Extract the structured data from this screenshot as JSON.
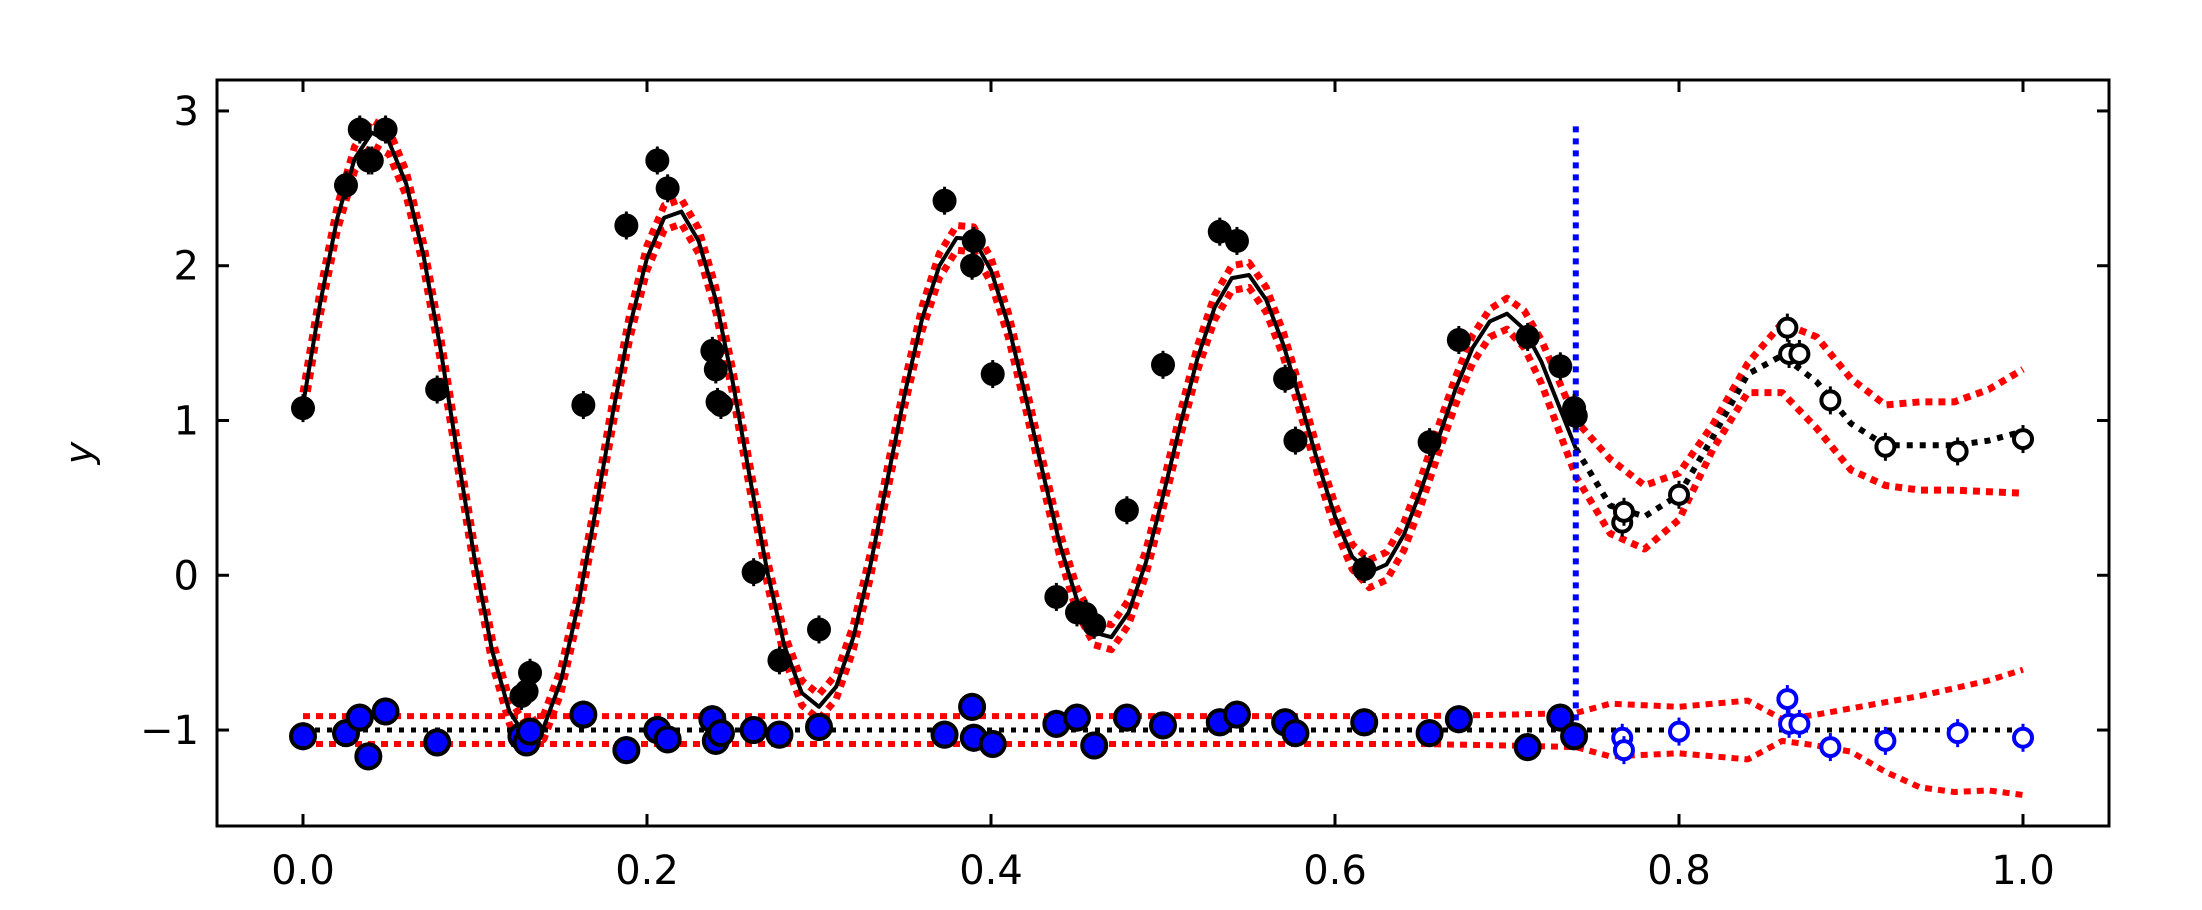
{
  "chart_data": {
    "type": "scatter",
    "title": "",
    "xlabel": "",
    "ylabel": "y",
    "xlim": [
      -0.05,
      1.05
    ],
    "ylim": [
      -1.62,
      3.2
    ],
    "xticks": [
      0.0,
      0.2,
      0.4,
      0.6,
      0.8,
      1.0
    ],
    "xtick_labels": [
      "0.0",
      "0.2",
      "0.4",
      "0.6",
      "0.8",
      "1.0"
    ],
    "yticks": [
      -1,
      0,
      1,
      2,
      3
    ],
    "ytick_labels": [
      "−1",
      "0",
      "1",
      "2",
      "3"
    ],
    "grid": false,
    "legend": "none",
    "colors": {
      "data": "#000000",
      "residual": "#0000ff",
      "band": "#ff0000",
      "cutoff": "#0000ff"
    },
    "cutoff_x": 0.74,
    "cutoff_y_range": [
      -1.0,
      2.9
    ],
    "fit_curve": {
      "x": [
        0.0,
        0.01,
        0.02,
        0.03,
        0.04,
        0.05,
        0.06,
        0.07,
        0.08,
        0.09,
        0.1,
        0.11,
        0.12,
        0.13,
        0.14,
        0.15,
        0.16,
        0.17,
        0.18,
        0.19,
        0.2,
        0.21,
        0.22,
        0.23,
        0.24,
        0.25,
        0.26,
        0.27,
        0.28,
        0.29,
        0.3,
        0.31,
        0.32,
        0.33,
        0.34,
        0.35,
        0.36,
        0.37,
        0.38,
        0.39,
        0.4,
        0.41,
        0.42,
        0.43,
        0.44,
        0.45,
        0.46,
        0.47,
        0.48,
        0.49,
        0.5,
        0.51,
        0.52,
        0.53,
        0.54,
        0.55,
        0.56,
        0.57,
        0.58,
        0.59,
        0.6,
        0.61,
        0.62,
        0.63,
        0.64,
        0.65,
        0.66,
        0.67,
        0.68,
        0.69,
        0.7,
        0.71,
        0.72,
        0.73,
        0.74
      ],
      "y": [
        1.1,
        1.76,
        2.31,
        2.69,
        2.86,
        2.8,
        2.53,
        2.07,
        1.46,
        0.77,
        0.09,
        -0.49,
        -0.88,
        -1.05,
        -0.98,
        -0.68,
        -0.19,
        0.41,
        1.04,
        1.61,
        2.05,
        2.31,
        2.35,
        2.16,
        1.78,
        1.24,
        0.62,
        0.02,
        -0.46,
        -0.76,
        -0.85,
        -0.72,
        -0.4,
        0.07,
        0.63,
        1.18,
        1.66,
        2.0,
        2.18,
        2.17,
        1.97,
        1.62,
        1.16,
        0.67,
        0.2,
        -0.16,
        -0.37,
        -0.4,
        -0.24,
        0.08,
        0.51,
        0.97,
        1.4,
        1.73,
        1.92,
        1.94,
        1.78,
        1.49,
        1.12,
        0.73,
        0.38,
        0.12,
        0.02,
        0.07,
        0.26,
        0.55,
        0.88,
        1.2,
        1.47,
        1.64,
        1.69,
        1.59,
        1.38,
        1.1,
        0.82
      ]
    },
    "band_upper": {
      "x": [
        0.0,
        0.01,
        0.02,
        0.03,
        0.04,
        0.05,
        0.06,
        0.07,
        0.08,
        0.09,
        0.1,
        0.11,
        0.12,
        0.13,
        0.14,
        0.15,
        0.16,
        0.17,
        0.18,
        0.19,
        0.2,
        0.21,
        0.22,
        0.23,
        0.24,
        0.25,
        0.26,
        0.27,
        0.28,
        0.29,
        0.3,
        0.31,
        0.32,
        0.33,
        0.34,
        0.35,
        0.36,
        0.37,
        0.38,
        0.39,
        0.4,
        0.41,
        0.42,
        0.43,
        0.44,
        0.45,
        0.46,
        0.47,
        0.48,
        0.49,
        0.5,
        0.51,
        0.52,
        0.53,
        0.54,
        0.55,
        0.56,
        0.57,
        0.58,
        0.59,
        0.6,
        0.61,
        0.62,
        0.63,
        0.64,
        0.65,
        0.66,
        0.67,
        0.68,
        0.69,
        0.7,
        0.71,
        0.72,
        0.73,
        0.74,
        0.76,
        0.78,
        0.8,
        0.82,
        0.84,
        0.86,
        0.88,
        0.9,
        0.92,
        0.94,
        0.96,
        0.98,
        1.0
      ],
      "y": [
        1.18,
        1.84,
        2.39,
        2.77,
        2.94,
        2.88,
        2.61,
        2.15,
        1.54,
        0.85,
        0.17,
        -0.41,
        -0.8,
        -0.97,
        -0.9,
        -0.6,
        -0.11,
        0.49,
        1.12,
        1.69,
        2.13,
        2.39,
        2.43,
        2.24,
        1.86,
        1.32,
        0.7,
        0.1,
        -0.38,
        -0.68,
        -0.77,
        -0.64,
        -0.32,
        0.15,
        0.71,
        1.26,
        1.74,
        2.08,
        2.26,
        2.25,
        2.05,
        1.7,
        1.24,
        0.75,
        0.28,
        -0.08,
        -0.29,
        -0.32,
        -0.16,
        0.16,
        0.59,
        1.05,
        1.48,
        1.81,
        2.0,
        2.02,
        1.86,
        1.57,
        1.2,
        0.81,
        0.46,
        0.2,
        0.1,
        0.15,
        0.34,
        0.63,
        0.96,
        1.28,
        1.55,
        1.72,
        1.79,
        1.71,
        1.52,
        1.26,
        1.0,
        0.75,
        0.58,
        0.66,
        0.98,
        1.37,
        1.63,
        1.54,
        1.27,
        1.1,
        1.12,
        1.12,
        1.2,
        1.33
      ]
    },
    "band_lower": {
      "x": [
        0.0,
        0.01,
        0.02,
        0.03,
        0.04,
        0.05,
        0.06,
        0.07,
        0.08,
        0.09,
        0.1,
        0.11,
        0.12,
        0.13,
        0.14,
        0.15,
        0.16,
        0.17,
        0.18,
        0.19,
        0.2,
        0.21,
        0.22,
        0.23,
        0.24,
        0.25,
        0.26,
        0.27,
        0.28,
        0.29,
        0.3,
        0.31,
        0.32,
        0.33,
        0.34,
        0.35,
        0.36,
        0.37,
        0.38,
        0.39,
        0.4,
        0.41,
        0.42,
        0.43,
        0.44,
        0.45,
        0.46,
        0.47,
        0.48,
        0.49,
        0.5,
        0.51,
        0.52,
        0.53,
        0.54,
        0.55,
        0.56,
        0.57,
        0.58,
        0.59,
        0.6,
        0.61,
        0.62,
        0.63,
        0.64,
        0.65,
        0.66,
        0.67,
        0.68,
        0.69,
        0.7,
        0.71,
        0.72,
        0.73,
        0.74,
        0.76,
        0.78,
        0.8,
        0.82,
        0.84,
        0.86,
        0.88,
        0.9,
        0.92,
        0.94,
        0.96,
        0.98,
        1.0
      ],
      "y": [
        1.02,
        1.68,
        2.23,
        2.61,
        2.78,
        2.72,
        2.45,
        1.99,
        1.38,
        0.69,
        0.01,
        -0.57,
        -0.96,
        -1.13,
        -1.06,
        -0.76,
        -0.27,
        0.33,
        0.96,
        1.53,
        1.97,
        2.23,
        2.27,
        2.08,
        1.7,
        1.16,
        0.54,
        -0.06,
        -0.54,
        -0.84,
        -0.93,
        -0.8,
        -0.48,
        -0.01,
        0.55,
        1.1,
        1.58,
        1.92,
        2.1,
        2.09,
        1.89,
        1.54,
        1.08,
        0.59,
        0.12,
        -0.24,
        -0.45,
        -0.48,
        -0.32,
        0.0,
        0.43,
        0.89,
        1.32,
        1.65,
        1.84,
        1.86,
        1.7,
        1.41,
        1.04,
        0.65,
        0.3,
        0.04,
        -0.08,
        -0.03,
        0.16,
        0.45,
        0.78,
        1.1,
        1.37,
        1.54,
        1.59,
        1.47,
        1.24,
        0.94,
        0.64,
        0.27,
        0.17,
        0.36,
        0.82,
        1.18,
        1.18,
        0.95,
        0.68,
        0.58,
        0.55,
        0.55,
        0.54,
        0.53
      ]
    },
    "prediction_curve": {
      "x": [
        0.74,
        0.76,
        0.78,
        0.8,
        0.82,
        0.84,
        0.86,
        0.88,
        0.9,
        0.92,
        0.94,
        0.96,
        0.98,
        1.0
      ],
      "y": [
        0.82,
        0.45,
        0.38,
        0.52,
        0.9,
        1.3,
        1.42,
        1.25,
        0.98,
        0.84,
        0.84,
        0.84,
        0.87,
        0.93
      ]
    },
    "train_points": {
      "x": [
        0.0,
        0.025,
        0.033,
        0.038,
        0.04,
        0.048,
        0.078,
        0.127,
        0.13,
        0.132,
        0.163,
        0.188,
        0.206,
        0.212,
        0.238,
        0.24,
        0.241,
        0.243,
        0.262,
        0.277,
        0.3,
        0.373,
        0.389,
        0.39,
        0.401,
        0.438,
        0.45,
        0.455,
        0.46,
        0.479,
        0.5,
        0.533,
        0.543,
        0.571,
        0.577,
        0.617,
        0.655,
        0.672,
        0.712,
        0.731,
        0.739,
        0.74
      ],
      "y": [
        1.08,
        2.52,
        2.88,
        2.68,
        2.68,
        2.88,
        1.2,
        -0.78,
        -0.75,
        -0.63,
        1.1,
        2.26,
        2.68,
        2.5,
        1.45,
        1.33,
        1.12,
        1.1,
        0.02,
        -0.55,
        -0.35,
        2.42,
        2.0,
        2.16,
        1.3,
        -0.14,
        -0.24,
        -0.25,
        -0.32,
        0.42,
        1.36,
        2.22,
        2.16,
        1.27,
        0.87,
        0.04,
        0.86,
        1.52,
        1.54,
        1.35,
        1.08,
        1.03
      ]
    },
    "test_points": {
      "x": [
        0.767,
        0.768,
        0.8,
        0.863,
        0.864,
        0.87,
        0.888,
        0.92,
        0.962,
        1.0
      ],
      "y": [
        0.34,
        0.41,
        0.52,
        1.6,
        1.43,
        1.43,
        1.13,
        0.83,
        0.8,
        0.88
      ]
    },
    "residual_band_upper": {
      "x": [
        0.0,
        0.05,
        0.1,
        0.15,
        0.2,
        0.25,
        0.3,
        0.35,
        0.4,
        0.45,
        0.5,
        0.55,
        0.6,
        0.65,
        0.7,
        0.74,
        0.76,
        0.8,
        0.84,
        0.86,
        0.88,
        0.9,
        0.92,
        0.94,
        0.96,
        0.98,
        1.0
      ],
      "y": [
        -0.91,
        -0.91,
        -0.91,
        -0.91,
        -0.91,
        -0.91,
        -0.91,
        -0.91,
        -0.91,
        -0.91,
        -0.91,
        -0.91,
        -0.91,
        -0.91,
        -0.9,
        -0.89,
        -0.83,
        -0.85,
        -0.81,
        -0.93,
        -0.9,
        -0.86,
        -0.82,
        -0.78,
        -0.73,
        -0.68,
        -0.61
      ]
    },
    "residual_band_lower": {
      "x": [
        0.0,
        0.05,
        0.1,
        0.15,
        0.2,
        0.25,
        0.3,
        0.35,
        0.4,
        0.45,
        0.5,
        0.55,
        0.6,
        0.65,
        0.7,
        0.74,
        0.76,
        0.8,
        0.84,
        0.86,
        0.88,
        0.9,
        0.92,
        0.94,
        0.96,
        0.98,
        1.0
      ],
      "y": [
        -1.09,
        -1.09,
        -1.09,
        -1.09,
        -1.09,
        -1.09,
        -1.09,
        -1.09,
        -1.09,
        -1.09,
        -1.09,
        -1.09,
        -1.09,
        -1.09,
        -1.1,
        -1.11,
        -1.17,
        -1.15,
        -1.19,
        -1.07,
        -1.1,
        -1.14,
        -1.27,
        -1.37,
        -1.4,
        -1.39,
        -1.42
      ]
    },
    "residual_train": {
      "x": [
        0.0,
        0.025,
        0.033,
        0.038,
        0.048,
        0.078,
        0.127,
        0.13,
        0.132,
        0.163,
        0.188,
        0.206,
        0.212,
        0.238,
        0.24,
        0.243,
        0.262,
        0.277,
        0.3,
        0.373,
        0.389,
        0.39,
        0.401,
        0.438,
        0.45,
        0.46,
        0.479,
        0.5,
        0.533,
        0.543,
        0.571,
        0.577,
        0.617,
        0.655,
        0.672,
        0.712,
        0.731,
        0.739
      ],
      "y": [
        -1.04,
        -1.02,
        -0.92,
        -1.17,
        -0.88,
        -1.08,
        -1.04,
        -1.08,
        -1.01,
        -0.9,
        -1.13,
        -1.0,
        -1.06,
        -0.93,
        -1.07,
        -1.02,
        -1.0,
        -1.03,
        -0.98,
        -1.03,
        -0.85,
        -1.05,
        -1.09,
        -0.96,
        -0.92,
        -1.1,
        -0.92,
        -0.97,
        -0.95,
        -0.9,
        -0.95,
        -1.02,
        -0.95,
        -1.02,
        -0.93,
        -1.11,
        -0.92,
        -1.04
      ]
    },
    "residual_test": {
      "x": [
        0.767,
        0.768,
        0.8,
        0.863,
        0.864,
        0.87,
        0.888,
        0.92,
        0.962,
        1.0
      ],
      "y": [
        -1.05,
        -1.13,
        -1.01,
        -0.8,
        -0.96,
        -0.96,
        -1.11,
        -1.07,
        -1.02,
        -1.05
      ]
    },
    "residual_zero": {
      "x": [
        0.0,
        1.0
      ],
      "y": [
        -1.0,
        -1.0
      ]
    }
  }
}
